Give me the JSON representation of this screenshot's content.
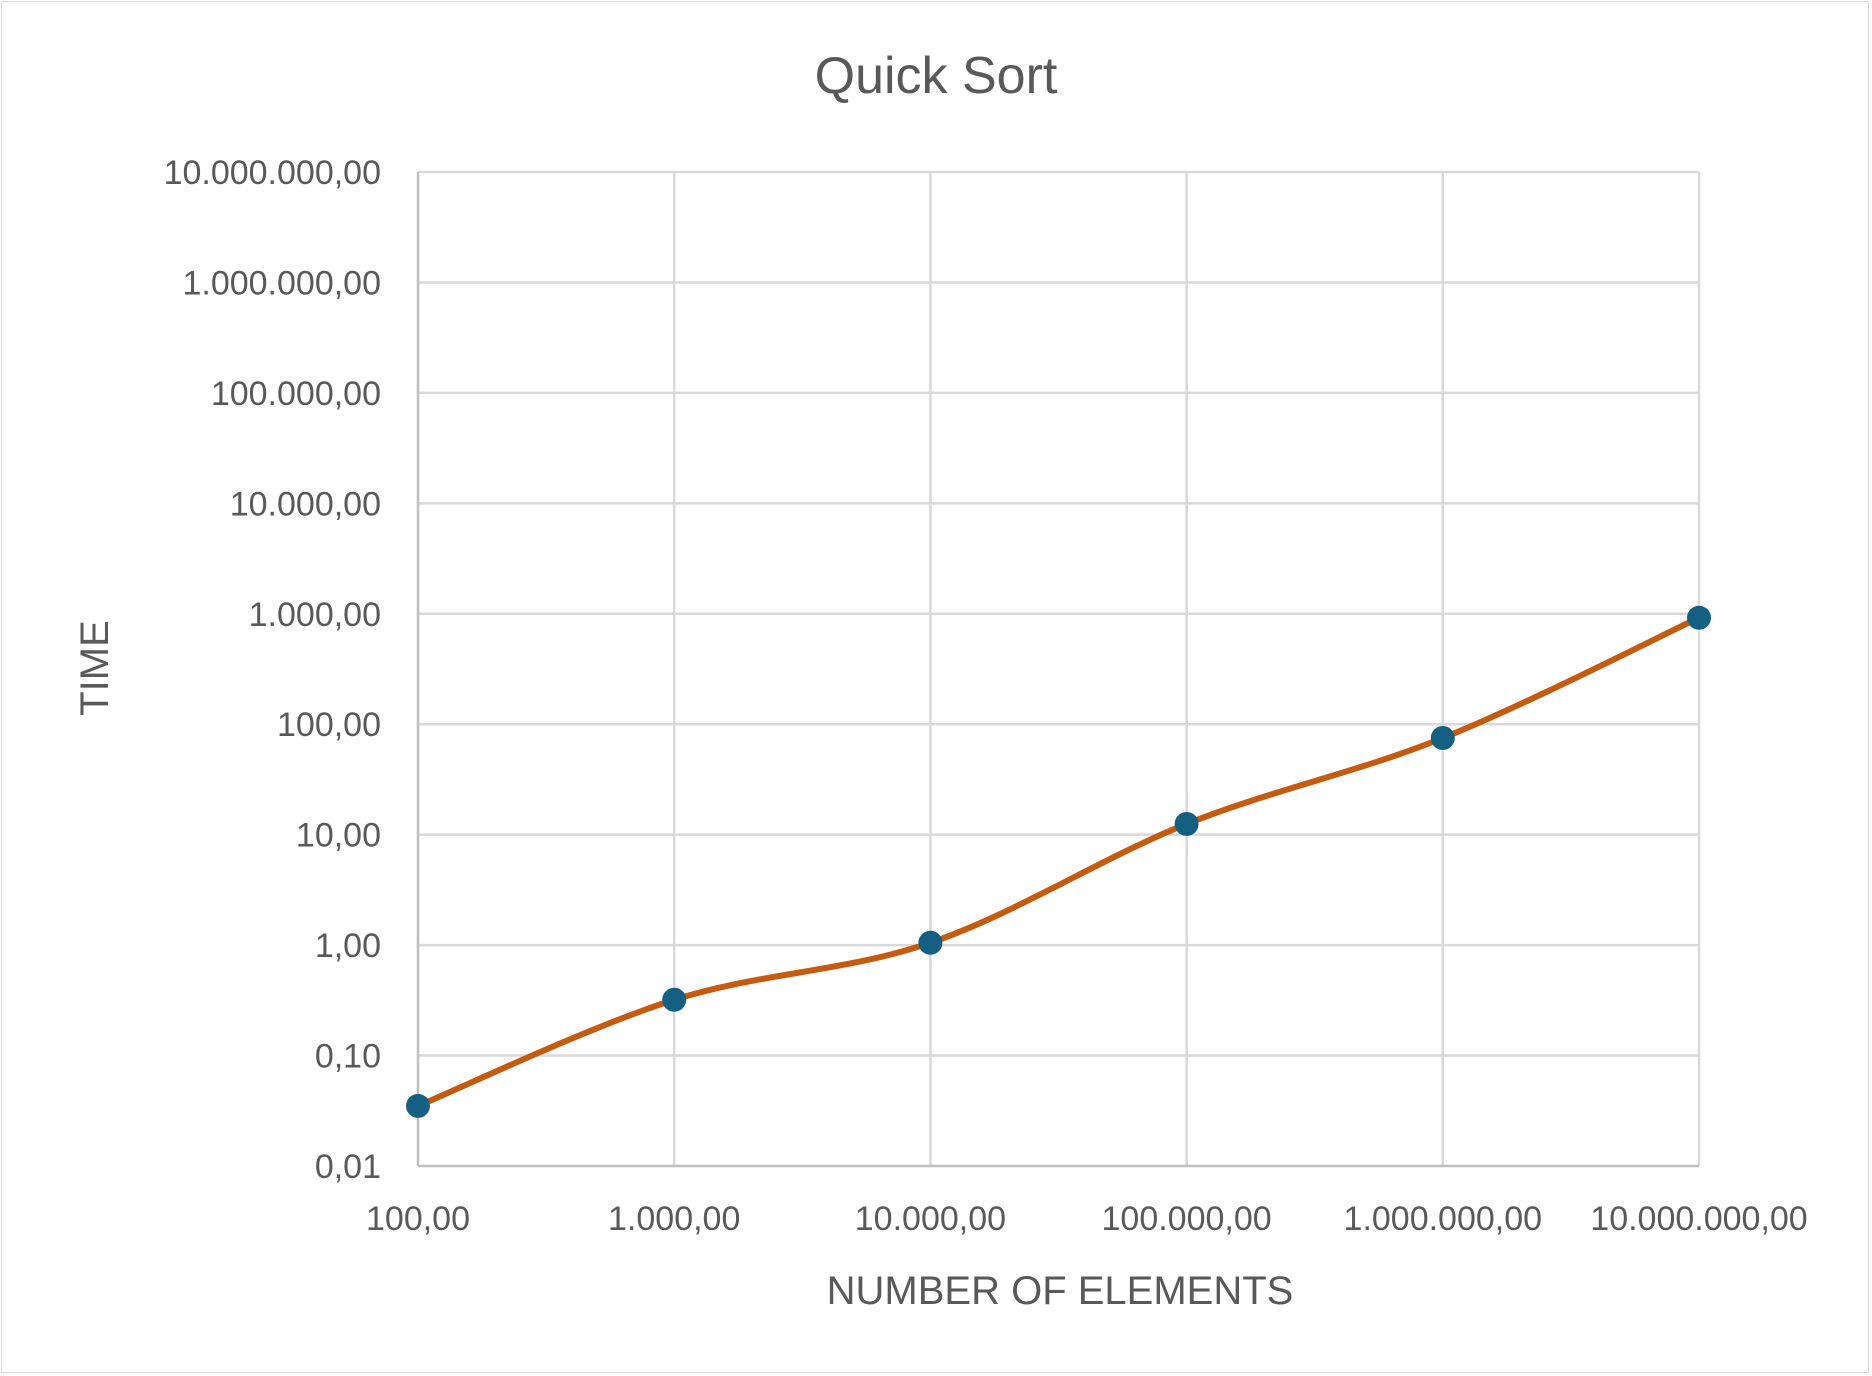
{
  "chart_data": {
    "type": "scatter",
    "title": "Quick Sort",
    "xlabel": "NUMBER OF ELEMENTS",
    "ylabel": "TIME",
    "x_scale": "log",
    "y_scale": "log",
    "xlim": [
      100,
      10000000
    ],
    "ylim": [
      0.01,
      10000000
    ],
    "x_ticks": [
      "100,00",
      "1.000,00",
      "10.000,00",
      "100.000,00",
      "1.000.000,00",
      "10.000.000,00"
    ],
    "y_ticks": [
      "0,01",
      "0,10",
      "1,00",
      "10,00",
      "100,00",
      "1.000,00",
      "10.000,00",
      "100.000,00",
      "1.000.000,00",
      "10.000.000,00"
    ],
    "grid": true,
    "smooth_line": true,
    "series": [
      {
        "x": [
          100,
          1000,
          10000,
          100000,
          1000000,
          10000000
        ],
        "y": [
          0.035,
          0.32,
          1.05,
          12.5,
          75,
          920
        ],
        "line_color": "#c55a11",
        "marker_color": "#156082"
      }
    ]
  }
}
